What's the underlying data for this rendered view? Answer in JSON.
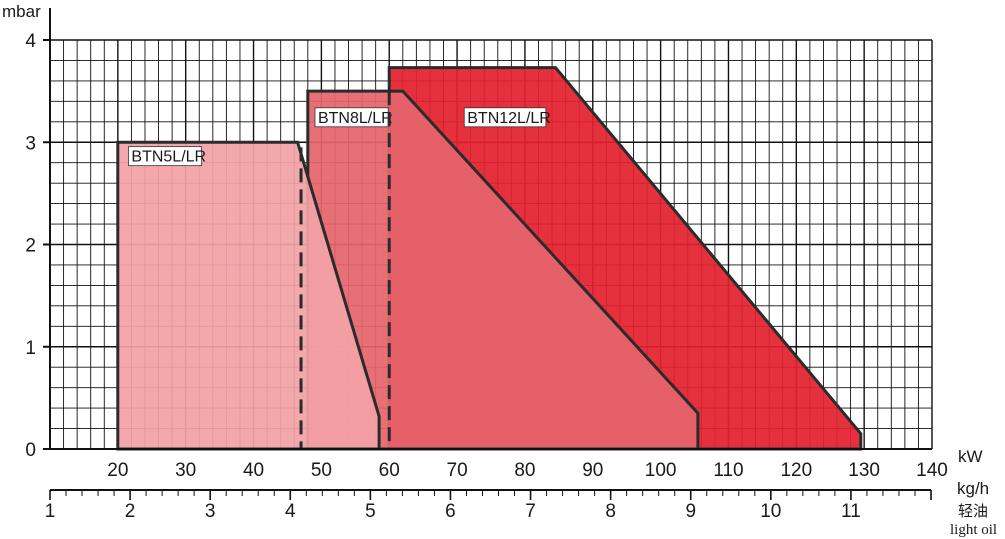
{
  "chart_data": {
    "type": "area",
    "y_unit": "mbar",
    "x_unit": "kW",
    "x2_unit": "kg/h",
    "x2_fuel_cn": "轻油",
    "x2_fuel_en": "light oil",
    "x_range": [
      10,
      140
    ],
    "y_range": [
      0,
      4
    ],
    "x_ticks": [
      "20",
      "30",
      "40",
      "50",
      "60",
      "70",
      "80",
      "90",
      "100",
      "110",
      "120",
      "130",
      "140"
    ],
    "y_ticks": [
      "0",
      "1",
      "2",
      "3",
      "4"
    ],
    "x2_ticks": [
      "1",
      "2",
      "3",
      "4",
      "5",
      "6",
      "7",
      "8",
      "9",
      "10",
      "11"
    ],
    "x2_range": [
      1,
      12
    ],
    "grid": true,
    "series": [
      {
        "name": "BTN12L/LR",
        "color": "#e3212f",
        "points": [
          [
            60,
            0.15
          ],
          [
            60,
            3.73
          ],
          [
            84.5,
            3.73
          ],
          [
            129.5,
            0.15
          ]
        ]
      },
      {
        "name": "BTN8L/LR",
        "color": "#e5646c",
        "points": [
          [
            48,
            0.15
          ],
          [
            48,
            3.5
          ],
          [
            62,
            3.5
          ],
          [
            105.5,
            0.35
          ],
          [
            105.5,
            0.0
          ],
          [
            48,
            0.0
          ]
        ]
      },
      {
        "name": "BTN5L/LR",
        "color": "#f2a1a6",
        "points": [
          [
            20,
            0.0
          ],
          [
            20,
            3.0
          ],
          [
            46.5,
            3.0
          ],
          [
            58.5,
            0.32
          ],
          [
            58.5,
            0.0
          ]
        ]
      }
    ],
    "dashed_x": [
      47,
      60
    ]
  }
}
